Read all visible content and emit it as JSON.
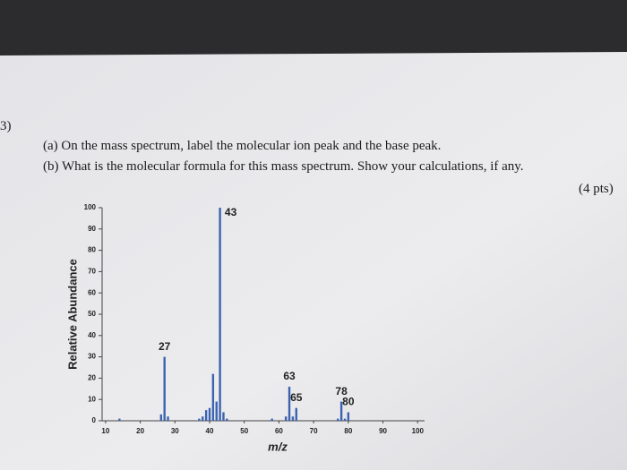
{
  "header": {
    "number": "3)",
    "question_a": "(a) On the mass spectrum, label the molecular ion peak and the base peak.",
    "question_b": "(b) What is the molecular formula for this mass spectrum. Show your calculations, if any.",
    "points": "(4 pts)"
  },
  "chart_data": {
    "type": "bar",
    "xlabel": "m/z",
    "ylabel": "Relative Abundance",
    "color": "#3d63b0",
    "x": [
      14,
      26,
      27,
      28,
      37,
      38,
      39,
      40,
      41,
      42,
      43,
      44,
      45,
      58,
      62,
      63,
      64,
      65,
      77,
      78,
      79,
      80
    ],
    "values": [
      1,
      3,
      30,
      2,
      1,
      2,
      5,
      6,
      22,
      9,
      100,
      4,
      1,
      1,
      2,
      16,
      2,
      6,
      1,
      9,
      1,
      4
    ],
    "peak_labels": [
      43,
      27,
      63,
      65,
      78,
      80
    ],
    "xlim": [
      9,
      102
    ],
    "xticks": [
      10,
      20,
      30,
      40,
      50,
      60,
      70,
      80,
      90,
      100
    ],
    "ylim": [
      0,
      100
    ],
    "yticks": [
      0,
      10,
      20,
      30,
      40,
      50,
      60,
      70,
      80,
      90,
      100
    ]
  }
}
